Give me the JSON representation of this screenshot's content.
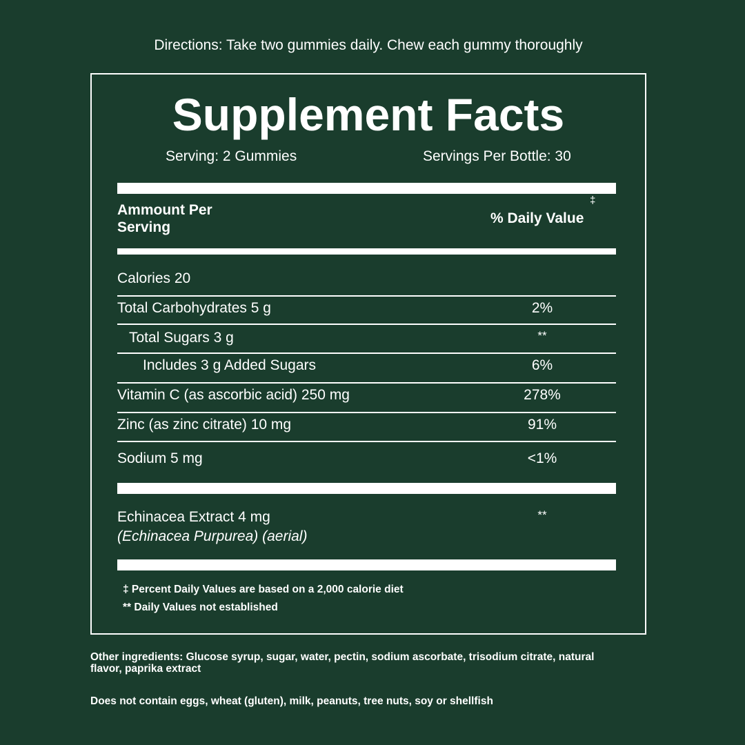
{
  "directions": "Directions: Take two gummies daily. Chew each gummy thoroughly",
  "title": "Supplement Facts",
  "serving": "Serving: 2 Gummies",
  "servings_per_bottle": "Servings Per Bottle: 30",
  "header": {
    "amount_line1": "Ammount Per",
    "amount_line2": "Serving",
    "dv_mark": "‡",
    "dv_label": "% Daily Value"
  },
  "rows": [
    {
      "label": "Calories 20",
      "dv": ""
    },
    {
      "label": "Total Carbohydrates 5 g",
      "dv": "2%"
    },
    {
      "label": "Total Sugars 3 g",
      "dv": "**"
    },
    {
      "label": "Includes 3 g Added Sugars",
      "dv": "6%"
    },
    {
      "label": "Vitamin C (as ascorbic acid) 250 mg",
      "dv": "278%"
    },
    {
      "label": "Zinc (as zinc citrate) 10 mg",
      "dv": "91%"
    },
    {
      "label": "Sodium 5 mg",
      "dv": "<1%"
    }
  ],
  "echinacea": {
    "label": "Echinacea Extract 4 mg",
    "sub": "(Echinacea Purpurea) (aerial)",
    "dv": "**"
  },
  "footnotes": [
    "‡ Percent Daily Values are based on a 2,000 calorie diet",
    "** Daily Values not established"
  ],
  "other_ingredients": "Other ingredients: Glucose syrup, sugar, water, pectin, sodium ascorbate, trisodium citrate, natural flavor, paprika extract",
  "allergens": "Does not contain eggs, wheat (gluten), milk, peanuts, tree nuts, soy or shellfish"
}
